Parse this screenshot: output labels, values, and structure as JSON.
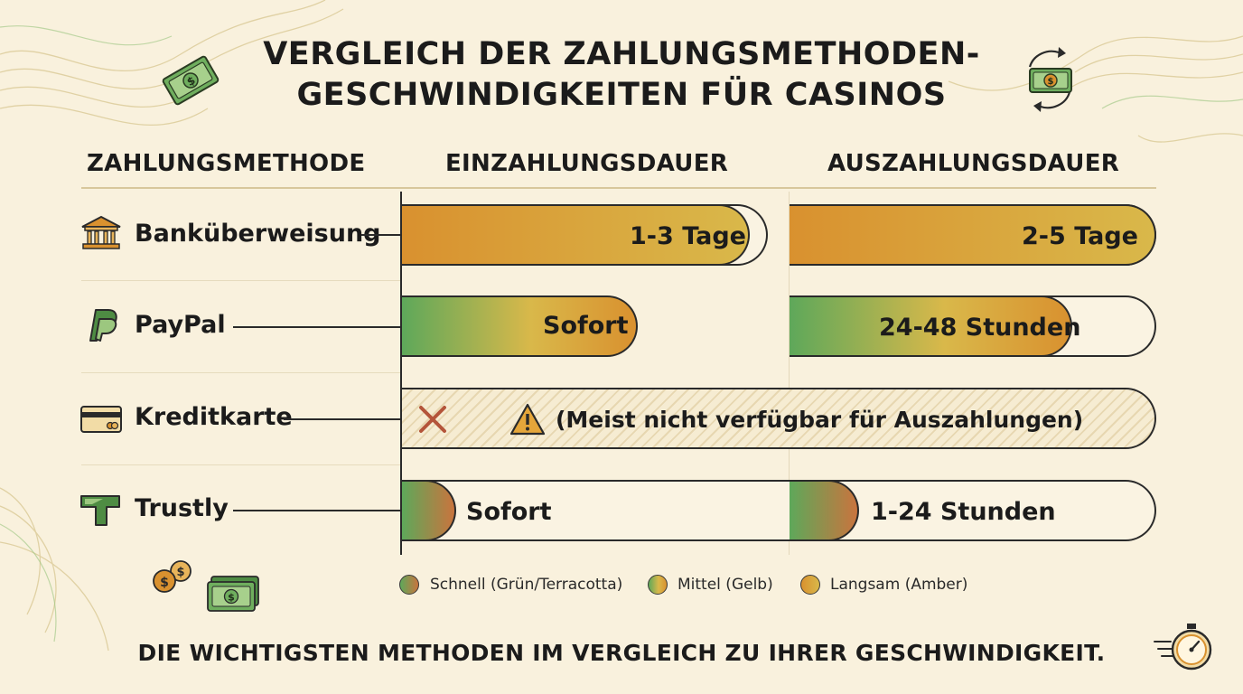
{
  "title_line1": "VERGLEICH DER ZAHLUNGSMETHODEN-",
  "title_line2": "GESCHWINDIGKEITEN FÜR CASINOS",
  "colors": {
    "fast_green": "#5ea85a",
    "terracotta": "#c9743e",
    "medium_yellow": "#d9b84a",
    "slow_amber": "#d9912f",
    "background": "#f9f1dd"
  },
  "chart_data": {
    "type": "bar",
    "columns": [
      "ZAHLUNGSMETHODE",
      "EINZAHLUNGSDAUER",
      "AUSZAHLUNGSDAUER"
    ],
    "rows": [
      {
        "method": "Banküberweisung",
        "icon": "bank-icon",
        "deposit": {
          "label": "1-3 Tage",
          "speed": "slow",
          "fill_fraction": 0.95
        },
        "withdrawal": {
          "label": "2-5 Tage",
          "speed": "slow",
          "fill_fraction": 1.0
        }
      },
      {
        "method": "PayPal",
        "icon": "paypal-icon",
        "deposit": {
          "label": "Sofort",
          "speed": "medium",
          "fill_fraction": 0.61
        },
        "withdrawal": {
          "label": "24-48 Stunden",
          "speed": "medium",
          "fill_fraction": 0.77
        }
      },
      {
        "method": "Kreditkarte",
        "icon": "credit-card-icon",
        "deposit_withdrawal_note": "(Meist nicht verfügbar für Auszahlungen)",
        "available": false
      },
      {
        "method": "Trustly",
        "icon": "trustly-icon",
        "deposit": {
          "label": "Sofort",
          "speed": "fast",
          "fill_fraction": 0.14
        },
        "withdrawal": {
          "label": "1-24 Stunden",
          "speed": "fast",
          "fill_fraction": 0.19
        }
      }
    ],
    "legend": [
      {
        "label": "Schnell (Grün/Terracotta)",
        "speed": "fast"
      },
      {
        "label": "Mittel (Gelb)",
        "speed": "medium"
      },
      {
        "label": "Langsam (Amber)",
        "speed": "slow"
      }
    ]
  },
  "footer": "DIE WICHTIGSTEN METHODEN IM VERGLEICH ZU IHRER GESCHWINDIGKEIT."
}
